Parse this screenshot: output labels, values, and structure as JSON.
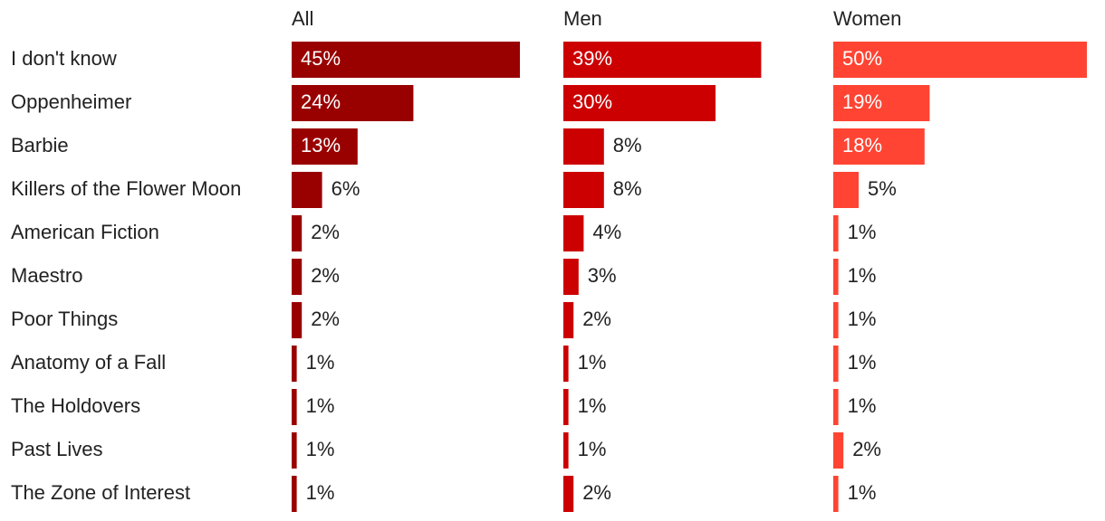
{
  "chart_data": {
    "type": "bar",
    "categories": [
      "I don't know",
      "Oppenheimer",
      "Barbie",
      "Killers of the Flower Moon",
      "American Fiction",
      "Maestro",
      "Poor Things",
      "Anatomy of a Fall",
      "The Holdovers",
      "Past Lives",
      "The Zone of Interest"
    ],
    "series": [
      {
        "name": "All",
        "color": "#990000",
        "values": [
          45,
          24,
          13,
          6,
          2,
          2,
          2,
          1,
          1,
          1,
          1
        ],
        "value_labels": [
          "45%",
          "24%",
          "13%",
          "6%",
          "2%",
          "2%",
          "2%",
          "1%",
          "1%",
          "1%",
          "1%"
        ]
      },
      {
        "name": "Men",
        "color": "#cc0000",
        "values": [
          39,
          30,
          8,
          8,
          4,
          3,
          2,
          1,
          1,
          1,
          2
        ],
        "value_labels": [
          "39%",
          "30%",
          "8%",
          "8%",
          "4%",
          "3%",
          "2%",
          "1%",
          "1%",
          "1%",
          "2%"
        ]
      },
      {
        "name": "Women",
        "color": "#ff4433",
        "values": [
          50,
          19,
          18,
          5,
          1,
          1,
          1,
          1,
          1,
          2,
          1
        ],
        "value_labels": [
          "50%",
          "19%",
          "18%",
          "5%",
          "1%",
          "1%",
          "1%",
          "1%",
          "1%",
          "2%",
          "1%"
        ]
      }
    ]
  }
}
